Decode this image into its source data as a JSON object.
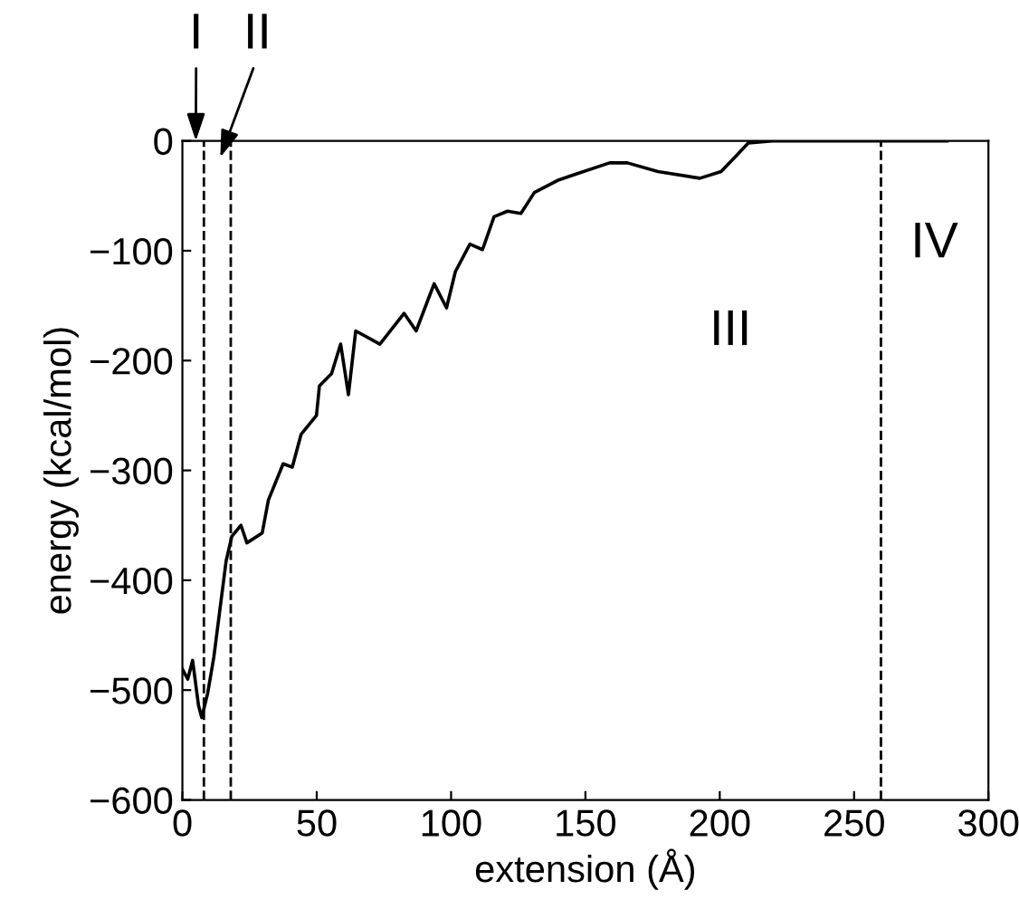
{
  "chart_data": {
    "type": "line",
    "xlabel": "extension (Å)",
    "ylabel": "energy (kcal/mol)",
    "xlim": [
      0,
      300
    ],
    "ylim": [
      -600,
      0
    ],
    "xticks": [
      0,
      50,
      100,
      150,
      200,
      250,
      300
    ],
    "yticks": [
      -600,
      -500,
      -400,
      -300,
      -200,
      -100,
      0
    ],
    "grid": false,
    "marker": "none",
    "line_style": "solid",
    "series": [
      {
        "color": "#000000",
        "x": [
          0,
          2,
          3.8,
          6,
          7.2,
          9.4,
          11.7,
          16.3,
          18.4,
          21.8,
          24,
          29.7,
          32,
          37.5,
          40.9,
          44.2,
          49.9,
          51,
          55.5,
          58.9,
          61.8,
          64.5,
          73.5,
          82.5,
          87,
          93.7,
          98.3,
          101.6,
          107,
          111.7,
          116,
          121,
          126,
          131,
          139.6,
          145.5,
          159,
          165.6,
          177,
          192.6,
          200.5,
          206,
          210.6,
          219.5,
          250,
          284.6
        ],
        "values": [
          -481,
          -490,
          -473,
          -514,
          -525,
          -503,
          -470,
          -382,
          -360,
          -350,
          -366,
          -357,
          -327,
          -294,
          -297,
          -267,
          -250,
          -223,
          -212,
          -185,
          -231,
          -173,
          -185,
          -157,
          -173,
          -130,
          -152,
          -119,
          -94,
          -99,
          -69,
          -64,
          -66,
          -47,
          -36,
          -31,
          -20,
          -20,
          -28,
          -34,
          -28,
          -14,
          -2,
          0,
          0,
          0
        ]
      }
    ],
    "ref_lines": [
      {
        "axis": "x",
        "value": 8,
        "line_style": "dashed",
        "color": "#000000"
      },
      {
        "axis": "x",
        "value": 18,
        "line_style": "dashed",
        "color": "#000000"
      },
      {
        "axis": "x",
        "value": 260,
        "line_style": "dashed",
        "color": "#000000"
      }
    ],
    "annotations": [
      {
        "text": "I",
        "x": 5,
        "y": 0
      },
      "II",
      "III",
      "IV"
    ]
  }
}
